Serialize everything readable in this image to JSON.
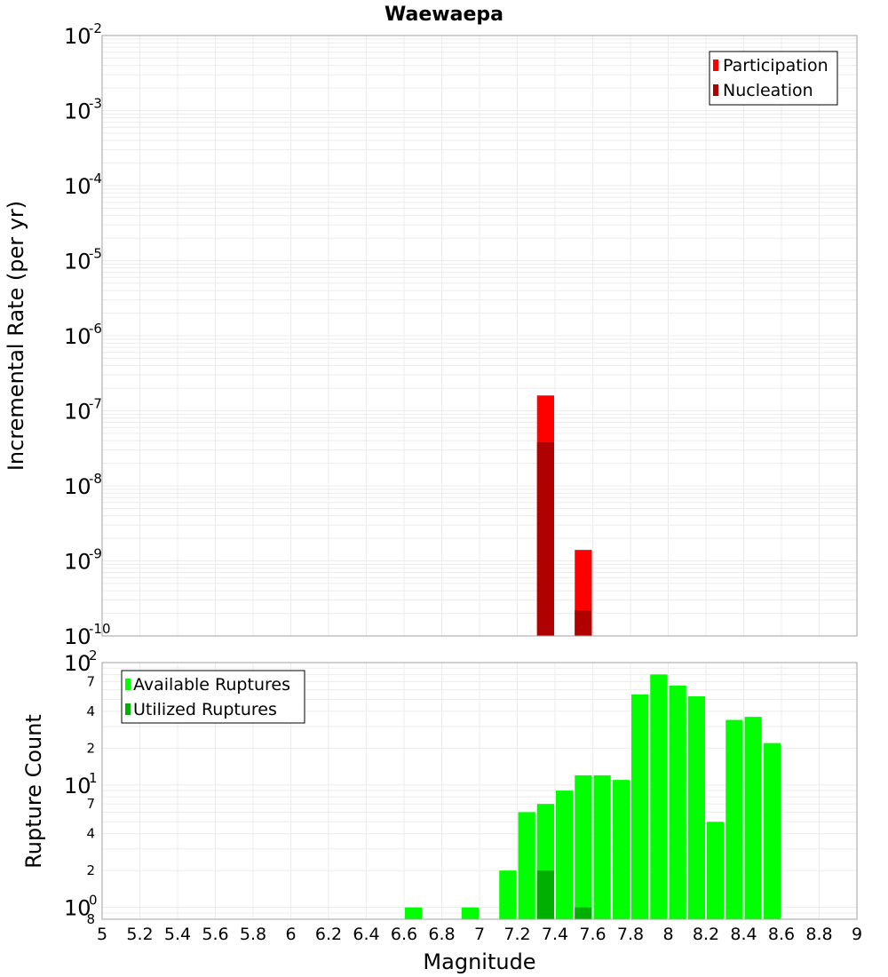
{
  "chart_data": [
    {
      "type": "bar",
      "title": "Waewaepa",
      "ylabel": "Incremental Rate (per yr)",
      "yscale": "log",
      "ylim": [
        1e-10,
        0.01
      ],
      "xlim": [
        5,
        9
      ],
      "bar_width": 0.1,
      "legend_position": "top-right",
      "y_ticks": [
        "10^-2",
        "10^-3",
        "10^-4",
        "10^-5",
        "10^-6",
        "10^-7",
        "10^-8",
        "10^-9",
        "10^-10"
      ],
      "series": [
        {
          "name": "Participation",
          "color": "#ff0000",
          "x": [
            7.35,
            7.55
          ],
          "values": [
            1.6e-07,
            1.4e-09
          ]
        },
        {
          "name": "Nucleation",
          "color": "#b00000",
          "x": [
            7.35,
            7.55
          ],
          "values": [
            3.8e-08,
            2.2e-10
          ]
        }
      ],
      "grid": true
    },
    {
      "type": "bar",
      "ylabel": "Rupture Count",
      "xlabel": "Magnitude",
      "yscale": "log",
      "ylim": [
        0.8,
        100
      ],
      "xlim": [
        5,
        9
      ],
      "bar_width": 0.1,
      "legend_position": "top-left",
      "x_ticks": [
        "5",
        "5.2",
        "5.4",
        "5.6",
        "5.8",
        "6",
        "6.2",
        "6.4",
        "6.6",
        "6.8",
        "7",
        "7.2",
        "7.4",
        "7.6",
        "7.8",
        "8",
        "8.2",
        "8.4",
        "8.6",
        "8.8",
        "9"
      ],
      "y_ticks": [
        "10^2",
        "10^1",
        "10^0"
      ],
      "y_minor_labels": [
        "7",
        "4",
        "2",
        "7",
        "4",
        "2",
        "8"
      ],
      "series": [
        {
          "name": "Available Ruptures",
          "color": "#00ff00",
          "x": [
            6.65,
            6.95,
            7.15,
            7.25,
            7.35,
            7.45,
            7.55,
            7.65,
            7.75,
            7.85,
            7.95,
            8.05,
            8.15,
            8.25,
            8.35,
            8.45,
            8.55
          ],
          "values": [
            1,
            1,
            2,
            6,
            7,
            9,
            12,
            12,
            11,
            55,
            80,
            65,
            53,
            5,
            34,
            36,
            22
          ]
        },
        {
          "name": "Utilized Ruptures",
          "color": "#00b000",
          "x": [
            7.35,
            7.55
          ],
          "values": [
            2,
            1
          ]
        }
      ],
      "grid": true
    }
  ]
}
